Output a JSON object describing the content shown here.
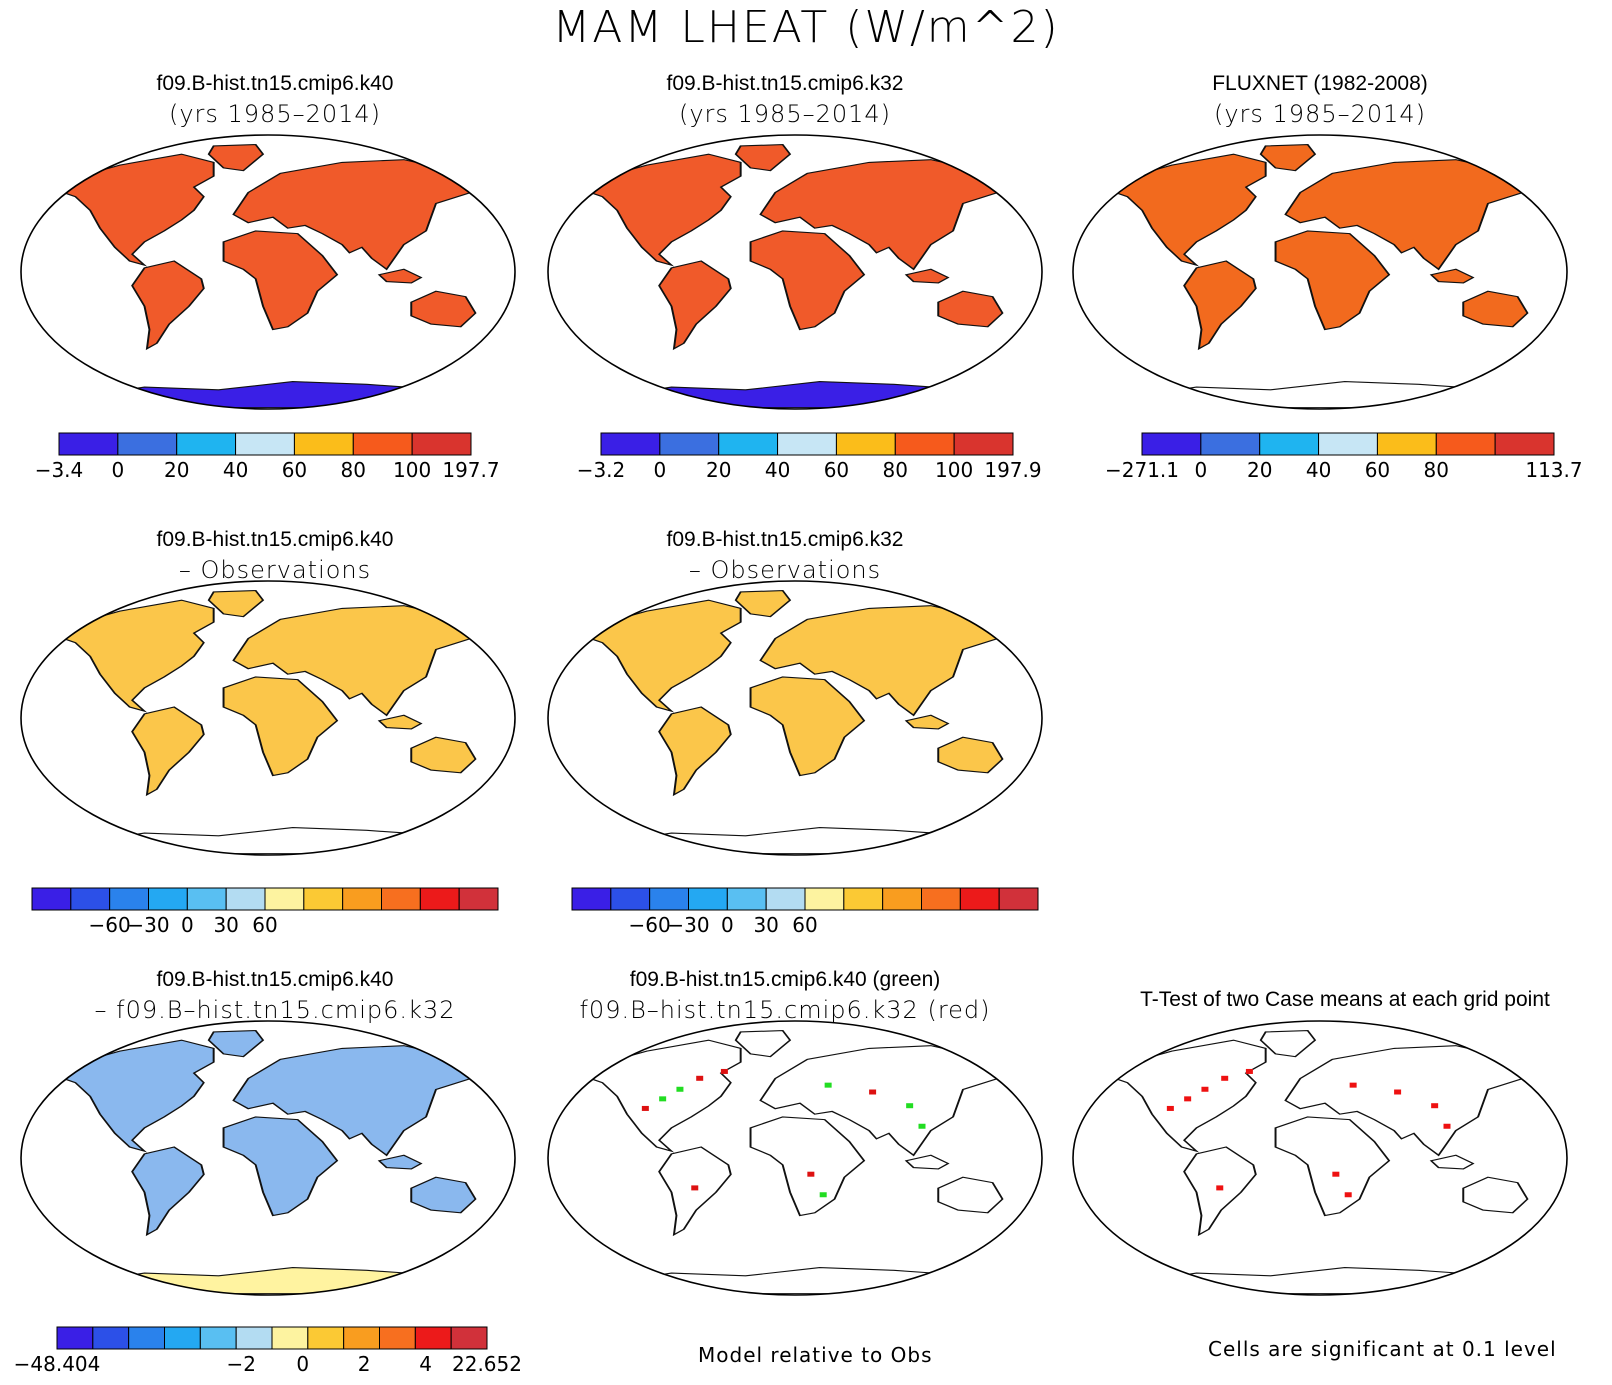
{
  "title": "MAM LHEAT (W/m^2)",
  "panels": [
    {
      "id": "p1",
      "title": "f09.B-hist.tn15.cmip6.k40",
      "subtitle": "(yrs 1985–2014)",
      "kind": "mean",
      "antarctica": "#3a1fe6"
    },
    {
      "id": "p2",
      "title": "f09.B-hist.tn15.cmip6.k32",
      "subtitle": "(yrs 1985–2014)",
      "kind": "mean",
      "antarctica": "#3a1fe6"
    },
    {
      "id": "p3",
      "title": "FLUXNET (1982-2008)",
      "subtitle": "(yrs 1985–2014)",
      "kind": "obs",
      "antarctica": "none"
    },
    {
      "id": "p4",
      "title": "f09.B-hist.tn15.cmip6.k40",
      "subtitle": "– Observations",
      "kind": "bias",
      "antarctica": "none"
    },
    {
      "id": "p5",
      "title": "f09.B-hist.tn15.cmip6.k32",
      "subtitle": "– Observations",
      "kind": "bias",
      "antarctica": "none"
    },
    {
      "id": "p7",
      "title": "f09.B-hist.tn15.cmip6.k40",
      "subtitle": "– f09.B–hist.tn15.cmip6.k32",
      "kind": "diff",
      "antarctica": "#fff3a0"
    },
    {
      "id": "p8",
      "title": "f09.B-hist.tn15.cmip6.k40 (green)",
      "subtitle": "f09.B–hist.tn15.cmip6.k32 (red)",
      "kind": "relative",
      "antarctica": "none"
    },
    {
      "id": "p9",
      "title": "T-Test of two Case means at each grid point",
      "subtitle": "",
      "kind": "ttest",
      "antarctica": "none"
    }
  ],
  "notes": {
    "relative": "Model relative to Obs",
    "ttest": "Cells are significant at 0.1 level"
  },
  "colorbars": [
    {
      "id": "cb1",
      "colors": [
        "#3a1fe6",
        "#3b6fe0",
        "#1fb4f0",
        "#c7e6f5",
        "#fbbd1a",
        "#f65a1c",
        "#d9342e"
      ],
      "labels": [
        "−3.4",
        "0",
        "20",
        "40",
        "60",
        "80",
        "100",
        "197.7"
      ]
    },
    {
      "id": "cb2",
      "colors": [
        "#3a1fe6",
        "#3b6fe0",
        "#1fb4f0",
        "#c7e6f5",
        "#fbbd1a",
        "#f65a1c",
        "#d9342e"
      ],
      "labels": [
        "−3.2",
        "0",
        "20",
        "40",
        "60",
        "80",
        "100",
        "197.9"
      ]
    },
    {
      "id": "cb3",
      "colors": [
        "#3a1fe6",
        "#3b6fe0",
        "#1fb4f0",
        "#c7e6f5",
        "#fbbd1a",
        "#f65a1c",
        "#d9342e"
      ],
      "labels": [
        "−271.1",
        "0",
        "20",
        "40",
        "60",
        "80",
        "",
        "113.7"
      ]
    },
    {
      "id": "cb4",
      "colors": [
        "#3a1fe6",
        "#2c50e8",
        "#2a82ec",
        "#24a8f2",
        "#59bff2",
        "#b3dcf2",
        "#fdf3a0",
        "#fbc934",
        "#f99d1f",
        "#f76f1f",
        "#ec1a1a",
        "#d1313a"
      ],
      "labels": [
        "",
        "",
        "−60",
        "−30",
        "0",
        "30",
        "60",
        "",
        "",
        "",
        "",
        "",
        ""
      ]
    },
    {
      "id": "cb5",
      "colors": [
        "#3a1fe6",
        "#2c50e8",
        "#2a82ec",
        "#24a8f2",
        "#59bff2",
        "#b3dcf2",
        "#fdf3a0",
        "#fbc934",
        "#f99d1f",
        "#f76f1f",
        "#ec1a1a",
        "#d1313a"
      ],
      "labels": [
        "",
        "",
        "−60",
        "−30",
        "0",
        "30",
        "60",
        "",
        "",
        "",
        "",
        "",
        ""
      ]
    },
    {
      "id": "cb7",
      "colors": [
        "#3a1fe6",
        "#2c50e8",
        "#2a82ec",
        "#24a8f2",
        "#59bff2",
        "#b3dcf2",
        "#fdf3a0",
        "#fbc934",
        "#f99d1f",
        "#f76f1f",
        "#ec1a1a",
        "#d1313a"
      ],
      "labels": [
        "−48.404",
        "",
        "",
        "−2",
        "0",
        "2",
        "4",
        "22.652"
      ]
    }
  ],
  "chart_data": [
    {
      "type": "heatmap",
      "panel": "f09.B-hist.tn15.cmip6.k40 (yrs 1985–2014)",
      "variable": "MAM LHEAT",
      "unit": "W/m^2",
      "levels": [
        -3.4,
        0,
        20,
        40,
        60,
        80,
        100,
        197.7
      ],
      "min": -3.4,
      "max": 197.7
    },
    {
      "type": "heatmap",
      "panel": "f09.B-hist.tn15.cmip6.k32 (yrs 1985–2014)",
      "variable": "MAM LHEAT",
      "unit": "W/m^2",
      "levels": [
        -3.2,
        0,
        20,
        40,
        60,
        80,
        100,
        197.9
      ],
      "min": -3.2,
      "max": 197.9
    },
    {
      "type": "heatmap",
      "panel": "FLUXNET (1982-2008)",
      "variable": "MAM LHEAT",
      "unit": "W/m^2",
      "levels": [
        -271.1,
        0,
        20,
        40,
        60,
        80,
        113.7
      ],
      "min": -271.1,
      "max": 113.7
    },
    {
      "type": "heatmap",
      "panel": "f09.B-hist.tn15.cmip6.k40 – Observations",
      "levels": [
        -60,
        -30,
        0,
        30,
        60
      ]
    },
    {
      "type": "heatmap",
      "panel": "f09.B-hist.tn15.cmip6.k32 – Observations",
      "levels": [
        -60,
        -30,
        0,
        30,
        60
      ]
    },
    {
      "type": "heatmap",
      "panel": "f09.B-hist.tn15.cmip6.k40 – f09.B–hist.tn15.cmip6.k32",
      "levels": [
        -48.404,
        -2,
        0,
        2,
        4,
        22.652
      ],
      "min": -48.404,
      "max": 22.652
    },
    {
      "type": "heatmap",
      "panel": "f09.B-hist.tn15.cmip6.k40 (green) f09.B–hist.tn15.cmip6.k32 (red)",
      "note": "Model relative to Obs",
      "series": [
        {
          "name": "f09.B-hist.tn15.cmip6.k40",
          "color": "#22dd22"
        },
        {
          "name": "f09.B-hist.tn15.cmip6.k32",
          "color": "#dd1111"
        }
      ]
    },
    {
      "type": "heatmap",
      "panel": "T-Test of two Case means at each grid point",
      "note": "Cells are significant at 0.1 level",
      "color": "#ee1111"
    }
  ]
}
